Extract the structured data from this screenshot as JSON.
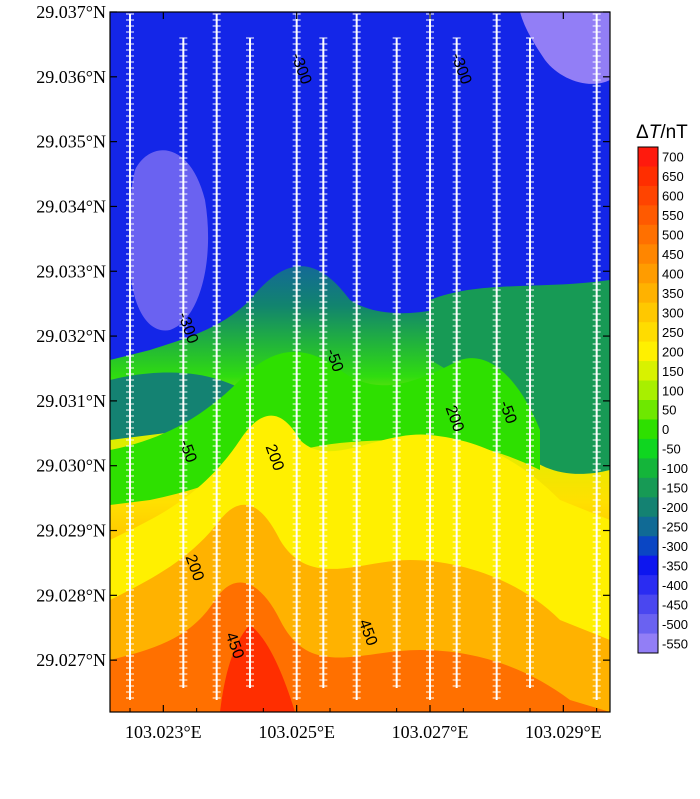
{
  "chart_data": {
    "type": "heatmap",
    "subtype": "filled-contour-map",
    "title": "",
    "x_ticks": [
      "103.023°E",
      "103.025°E",
      "103.027°E",
      "103.029°E"
    ],
    "x_tick_values": [
      103.023,
      103.025,
      103.027,
      103.029
    ],
    "y_ticks": [
      "29.037°N",
      "29.036°N",
      "29.035°N",
      "29.034°N",
      "29.033°N",
      "29.032°N",
      "29.031°N",
      "29.030°N",
      "29.029°N",
      "29.028°N",
      "29.027°N"
    ],
    "y_tick_values": [
      29.037,
      29.036,
      29.035,
      29.034,
      29.033,
      29.032,
      29.031,
      29.03,
      29.029,
      29.028,
      29.027
    ],
    "xlim": [
      103.0222,
      103.0297
    ],
    "ylim": [
      29.0262,
      29.037
    ],
    "colorbar": {
      "title_prefix": "Δ",
      "title_var": "T",
      "title_unit": "/nT",
      "levels": [
        700,
        650,
        600,
        550,
        500,
        450,
        400,
        350,
        300,
        250,
        200,
        150,
        100,
        50,
        0,
        -50,
        -100,
        -150,
        -200,
        -250,
        -300,
        -350,
        -400,
        -450,
        -500,
        -550
      ],
      "colors": [
        "#ff1a0d",
        "#ff2e00",
        "#ff4400",
        "#ff5a00",
        "#ff7000",
        "#ff8600",
        "#ff9c00",
        "#ffb200",
        "#ffc800",
        "#ffdc00",
        "#fff000",
        "#d8f200",
        "#a8ef00",
        "#6ee800",
        "#2ee000",
        "#0fd620",
        "#14b53a",
        "#179a55",
        "#148272",
        "#106a95",
        "#0a46c4",
        "#0d16ef",
        "#2a2cf2",
        "#4a47f0",
        "#6a62f1",
        "#927ef6"
      ]
    },
    "contour_labels": [
      {
        "text": "-300",
        "x": 103.025,
        "y": 29.0361
      },
      {
        "text": "-300",
        "x": 103.0274,
        "y": 29.0361
      },
      {
        "text": "-300",
        "x": 103.0233,
        "y": 29.0321
      },
      {
        "text": "-50",
        "x": 103.0255,
        "y": 29.0316
      },
      {
        "text": "-50",
        "x": 103.0233,
        "y": 29.0302
      },
      {
        "text": "200",
        "x": 103.0246,
        "y": 29.0301
      },
      {
        "text": "200",
        "x": 103.0273,
        "y": 29.0307
      },
      {
        "text": "-50",
        "x": 103.0281,
        "y": 29.0308
      },
      {
        "text": "200",
        "x": 103.0234,
        "y": 29.0284
      },
      {
        "text": "450",
        "x": 103.024,
        "y": 29.0272
      },
      {
        "text": "450",
        "x": 103.026,
        "y": 29.0274
      }
    ],
    "survey_lines_x": [
      103.0225,
      103.0233,
      103.0238,
      103.0243,
      103.025,
      103.0254,
      103.0259,
      103.0265,
      103.027,
      103.0274,
      103.028,
      103.0285,
      103.0295
    ]
  }
}
